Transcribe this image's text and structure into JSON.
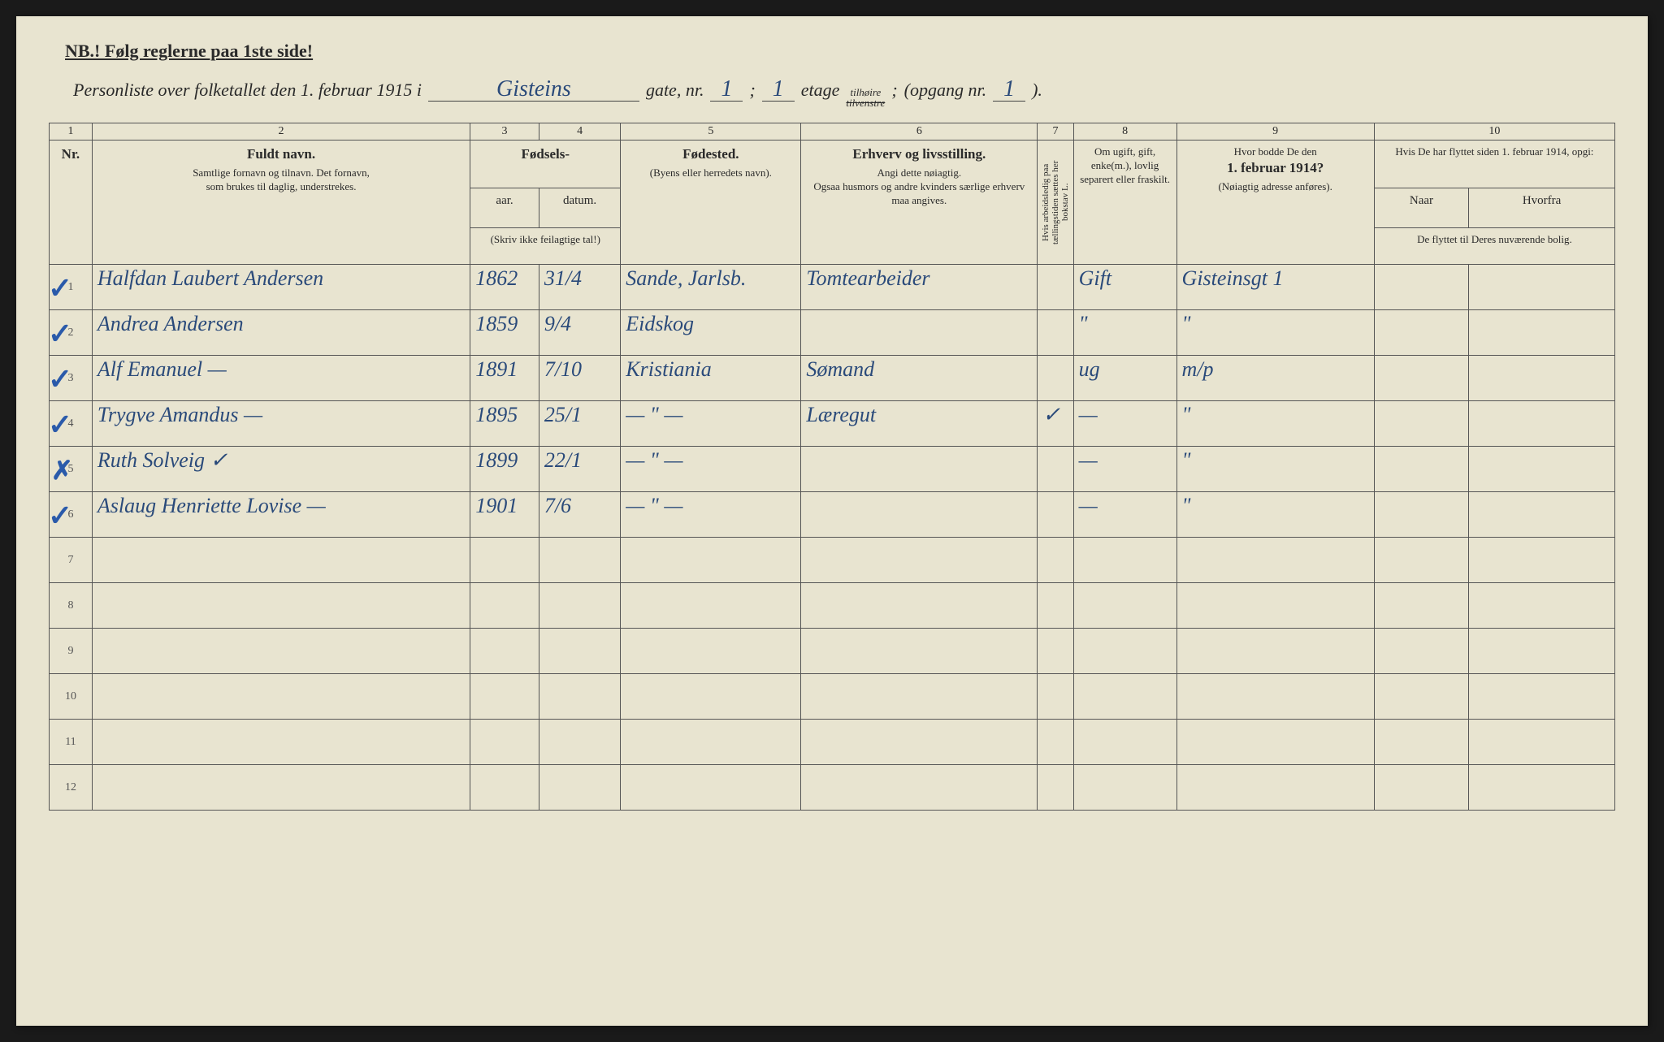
{
  "header": {
    "nb": "NB.! Følg reglerne paa 1ste side!",
    "subtitle_prefix": "Personliste over folketallet den 1. februar 1915 i",
    "street": "Gisteins",
    "label_gate": "gate, nr.",
    "house_nr": "1",
    "semicolon": ";",
    "floor_nr": "1",
    "label_etage": "etage",
    "side_top": "tilhøire",
    "side_bot": "tilvenstre",
    "opgang_label": "(opgang nr.",
    "opgang_nr": "1",
    "closing": ")."
  },
  "column_numbers": [
    "1",
    "2",
    "3",
    "4",
    "5",
    "6",
    "7",
    "8",
    "9",
    "10"
  ],
  "columns": {
    "nr": "Nr.",
    "name_heading": "Fuldt navn.",
    "name_sub1": "Samtlige fornavn og tilnavn.   Det fornavn,",
    "name_sub2": "som brukes til daglig, understrekes.",
    "birth_heading": "Fødsels-",
    "birth_year": "aar.",
    "birth_date": "datum.",
    "birth_note": "(Skriv ikke feilagtige tal!)",
    "birthplace_heading": "Fødested.",
    "birthplace_sub": "(Byens eller herredets navn).",
    "occupation_heading": "Erhverv og livsstilling.",
    "occupation_sub1": "Angi dette nøiagtig.",
    "occupation_sub2": "Ogsaa husmors og andre kvinders særlige erhverv maa angives.",
    "col7_text": "Hvis arbeidsledig paa tællingstiden sættes her bokstav L.",
    "marital_heading": "Om ugift, gift, enke(m.), lovlig separert eller fraskilt.",
    "residence_heading": "Hvor bodde De den",
    "residence_date": "1. februar 1914?",
    "residence_sub": "(Nøiagtig adresse anføres).",
    "moved_heading": "Hvis De har flyttet siden 1. februar 1914, opgi:",
    "moved_when": "Naar",
    "moved_whence": "Hvorfra",
    "moved_sub": "De flyttet til Deres nuværende bolig."
  },
  "rows": [
    {
      "nr": "1",
      "mark": "check",
      "name": "Halfdan Laubert Andersen",
      "year": "1862",
      "date": "31/4",
      "birthplace": "Sande, Jarlsb.",
      "occupation": "Tomtearbeider",
      "col7": "",
      "marital": "Gift",
      "residence": "Gisteinsgt 1",
      "when": "",
      "whence": ""
    },
    {
      "nr": "2",
      "mark": "check",
      "name": "Andrea Andersen",
      "year": "1859",
      "date": "9/4",
      "birthplace": "Eidskog",
      "occupation": "",
      "col7": "",
      "marital": "\"",
      "residence": "\"",
      "when": "",
      "whence": ""
    },
    {
      "nr": "3",
      "mark": "check",
      "name": "Alf Emanuel    —",
      "year": "1891",
      "date": "7/10",
      "birthplace": "Kristiania",
      "occupation": "Sømand",
      "col7": "",
      "marital": "ug",
      "residence": "m/p",
      "when": "",
      "whence": ""
    },
    {
      "nr": "4",
      "mark": "check",
      "name": "Trygve Amandus    —",
      "year": "1895",
      "date": "25/1",
      "birthplace": "— \" —",
      "occupation": "Læregut",
      "col7": "✓",
      "marital": "—",
      "residence": "\"",
      "when": "",
      "whence": ""
    },
    {
      "nr": "5",
      "mark": "x",
      "name": "Ruth Solveig        ✓",
      "year": "1899",
      "date": "22/1",
      "birthplace": "— \" —",
      "occupation": "",
      "col7": "",
      "marital": "—",
      "residence": "\"",
      "when": "",
      "whence": ""
    },
    {
      "nr": "6",
      "mark": "check",
      "name": "Aslaug Henriette Lovise  —",
      "year": "1901",
      "date": "7/6",
      "birthplace": "— \" —",
      "occupation": "",
      "col7": "",
      "marital": "—",
      "residence": "\"",
      "when": "",
      "whence": ""
    },
    {
      "nr": "7",
      "mark": "",
      "name": "",
      "year": "",
      "date": "",
      "birthplace": "",
      "occupation": "",
      "col7": "",
      "marital": "",
      "residence": "",
      "when": "",
      "whence": ""
    },
    {
      "nr": "8",
      "mark": "",
      "name": "",
      "year": "",
      "date": "",
      "birthplace": "",
      "occupation": "",
      "col7": "",
      "marital": "",
      "residence": "",
      "when": "",
      "whence": ""
    },
    {
      "nr": "9",
      "mark": "",
      "name": "",
      "year": "",
      "date": "",
      "birthplace": "",
      "occupation": "",
      "col7": "",
      "marital": "",
      "residence": "",
      "when": "",
      "whence": ""
    },
    {
      "nr": "10",
      "mark": "",
      "name": "",
      "year": "",
      "date": "",
      "birthplace": "",
      "occupation": "",
      "col7": "",
      "marital": "",
      "residence": "",
      "when": "",
      "whence": ""
    },
    {
      "nr": "11",
      "mark": "",
      "name": "",
      "year": "",
      "date": "",
      "birthplace": "",
      "occupation": "",
      "col7": "",
      "marital": "",
      "residence": "",
      "when": "",
      "whence": ""
    },
    {
      "nr": "12",
      "mark": "",
      "name": "",
      "year": "",
      "date": "",
      "birthplace": "",
      "occupation": "",
      "col7": "",
      "marital": "",
      "residence": "",
      "when": "",
      "whence": ""
    }
  ],
  "styling": {
    "paper_color": "#e8e4d0",
    "ink_color": "#2a2a2a",
    "handwriting_color": "#2a4a7a",
    "border_color": "#555555",
    "check_color": "#2a5aaa"
  }
}
